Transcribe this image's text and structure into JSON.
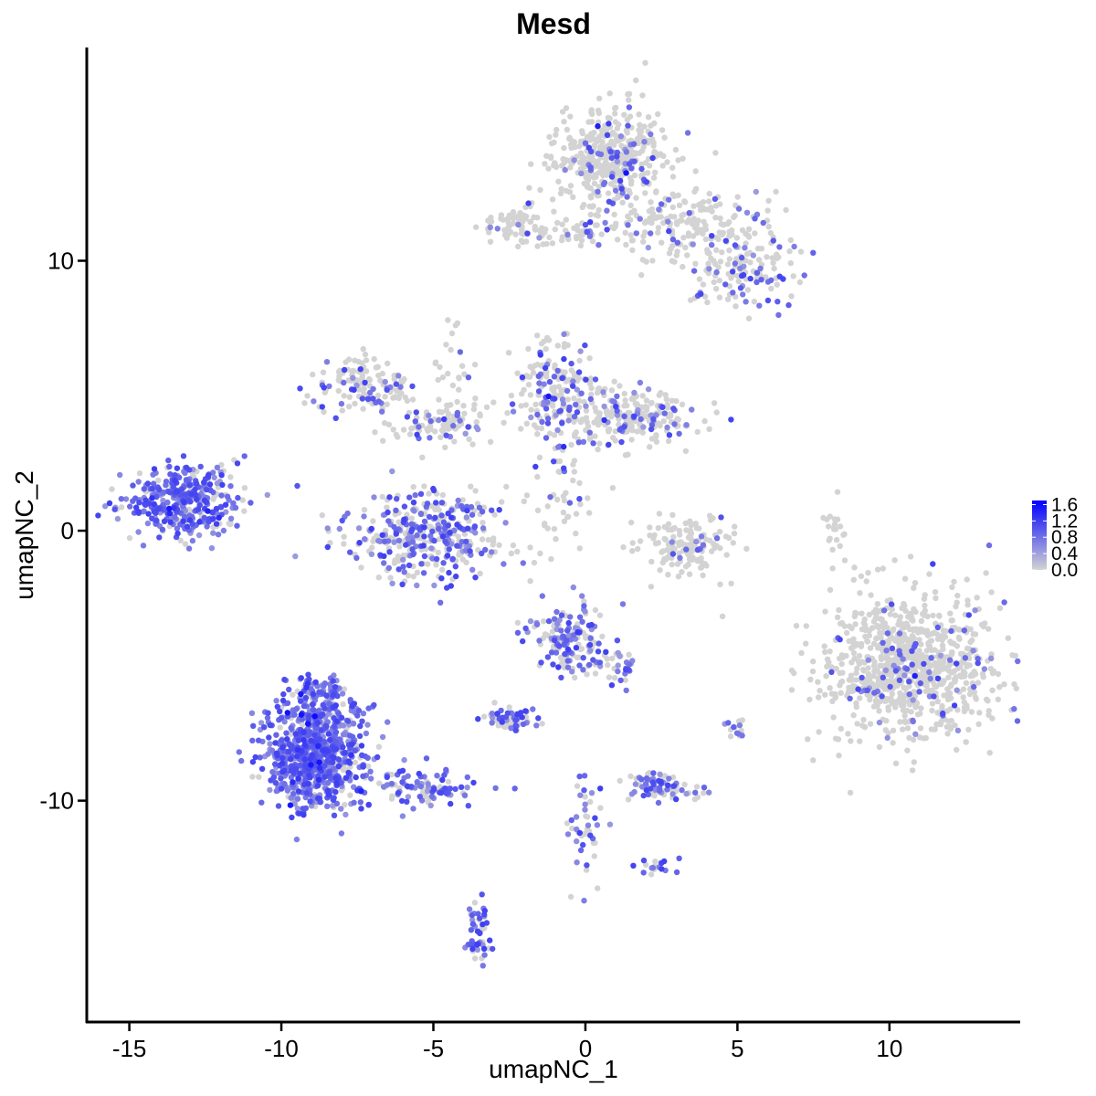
{
  "chart_data": {
    "type": "scatter",
    "title": "Mesd",
    "xlabel": "umapNC_1",
    "ylabel": "umapNC_2",
    "xlim": [
      -16.4,
      14.3
    ],
    "ylim": [
      -18.2,
      17.9
    ],
    "x_ticks": [
      -15,
      -10,
      -5,
      0,
      5,
      10
    ],
    "x_tick_labels": [
      "-15",
      "-10",
      "-5",
      "0",
      "5",
      "10"
    ],
    "y_ticks": [
      -10,
      0,
      10
    ],
    "y_tick_labels": [
      "-10",
      "0",
      "10"
    ],
    "grid": false,
    "legend_position": "right",
    "color_scale": {
      "low_color": "#d3d3d3",
      "high_color": "#0000ff",
      "range": [
        0.0,
        1.7
      ],
      "ticks": [
        0.0,
        0.4,
        0.8,
        1.2,
        1.6
      ],
      "tick_labels": [
        "0.0",
        "0.4",
        "0.8",
        "1.2",
        "1.6"
      ]
    },
    "clusters": [
      {
        "cx": 10.8,
        "cy": -5.0,
        "sx": 1.5,
        "sy": 1.3,
        "n": 900,
        "expr_frac": 0.1
      },
      {
        "cx": 0.9,
        "cy": 13.8,
        "sx": 0.9,
        "sy": 0.9,
        "n": 420,
        "expr_frac": 0.15
      },
      {
        "cx": 3.5,
        "cy": 11.3,
        "sx": 1.4,
        "sy": 0.7,
        "n": 200,
        "expr_frac": 0.12
      },
      {
        "cx": 5.3,
        "cy": 9.6,
        "sx": 0.9,
        "sy": 0.6,
        "n": 120,
        "expr_frac": 0.3
      },
      {
        "cx": -2.2,
        "cy": 11.4,
        "sx": 0.6,
        "sy": 0.4,
        "n": 70,
        "expr_frac": 0.2
      },
      {
        "cx": -0.2,
        "cy": 11.1,
        "sx": 0.8,
        "sy": 0.25,
        "n": 45,
        "expr_frac": 0.25
      },
      {
        "cx": -1.0,
        "cy": 5.0,
        "sx": 0.7,
        "sy": 1.0,
        "n": 190,
        "expr_frac": 0.35
      },
      {
        "cx": 1.6,
        "cy": 4.2,
        "sx": 1.2,
        "sy": 0.5,
        "n": 220,
        "expr_frac": 0.2
      },
      {
        "cx": -7.3,
        "cy": 5.3,
        "sx": 0.8,
        "sy": 0.5,
        "n": 130,
        "expr_frac": 0.3
      },
      {
        "cx": -5.0,
        "cy": 3.9,
        "sx": 1.0,
        "sy": 0.4,
        "n": 90,
        "expr_frac": 0.25
      },
      {
        "cx": -5.2,
        "cy": -0.2,
        "sx": 1.3,
        "sy": 0.8,
        "n": 380,
        "expr_frac": 0.5
      },
      {
        "cx": -13.4,
        "cy": 1.1,
        "sx": 0.9,
        "sy": 0.65,
        "n": 330,
        "expr_frac": 0.8
      },
      {
        "cx": -12.2,
        "cy": 1.4,
        "sx": 0.45,
        "sy": 0.8,
        "n": 50,
        "expr_frac": 0.6
      },
      {
        "cx": 3.4,
        "cy": -0.6,
        "sx": 0.7,
        "sy": 0.5,
        "n": 150,
        "expr_frac": 0.08
      },
      {
        "cx": 8.2,
        "cy": 0.3,
        "sx": 0.15,
        "sy": 0.6,
        "n": 20,
        "expr_frac": 0.05
      },
      {
        "cx": -8.9,
        "cy": -8.3,
        "sx": 0.85,
        "sy": 1.0,
        "n": 750,
        "expr_frac": 0.85
      },
      {
        "cx": -8.6,
        "cy": -6.2,
        "sx": 0.5,
        "sy": 0.5,
        "n": 120,
        "expr_frac": 0.75
      },
      {
        "cx": -5.5,
        "cy": -9.5,
        "sx": 1.0,
        "sy": 0.35,
        "n": 110,
        "expr_frac": 0.65
      },
      {
        "cx": -0.5,
        "cy": -4.0,
        "sx": 0.6,
        "sy": 0.6,
        "n": 160,
        "expr_frac": 0.6
      },
      {
        "cx": 1.0,
        "cy": -5.0,
        "sx": 0.35,
        "sy": 0.4,
        "n": 30,
        "expr_frac": 0.55
      },
      {
        "cx": -2.5,
        "cy": -7.0,
        "sx": 0.4,
        "sy": 0.2,
        "n": 60,
        "expr_frac": 0.6
      },
      {
        "cx": 2.4,
        "cy": -9.5,
        "sx": 0.6,
        "sy": 0.25,
        "n": 80,
        "expr_frac": 0.55
      },
      {
        "cx": -3.5,
        "cy": -14.8,
        "sx": 0.2,
        "sy": 0.6,
        "n": 50,
        "expr_frac": 0.7
      },
      {
        "cx": 0.0,
        "cy": -11.0,
        "sx": 0.25,
        "sy": 1.0,
        "n": 45,
        "expr_frac": 0.6
      },
      {
        "cx": 2.3,
        "cy": -12.4,
        "sx": 0.3,
        "sy": 0.15,
        "n": 18,
        "expr_frac": 0.7
      },
      {
        "cx": 5.0,
        "cy": -7.3,
        "sx": 0.2,
        "sy": 0.2,
        "n": 15,
        "expr_frac": 0.5
      },
      {
        "cx": -0.8,
        "cy": 1.0,
        "sx": 0.6,
        "sy": 1.0,
        "n": 40,
        "expr_frac": 0.2
      },
      {
        "cx": -4.3,
        "cy": 5.5,
        "sx": 0.3,
        "sy": 1.2,
        "n": 30,
        "expr_frac": 0.2
      }
    ]
  }
}
